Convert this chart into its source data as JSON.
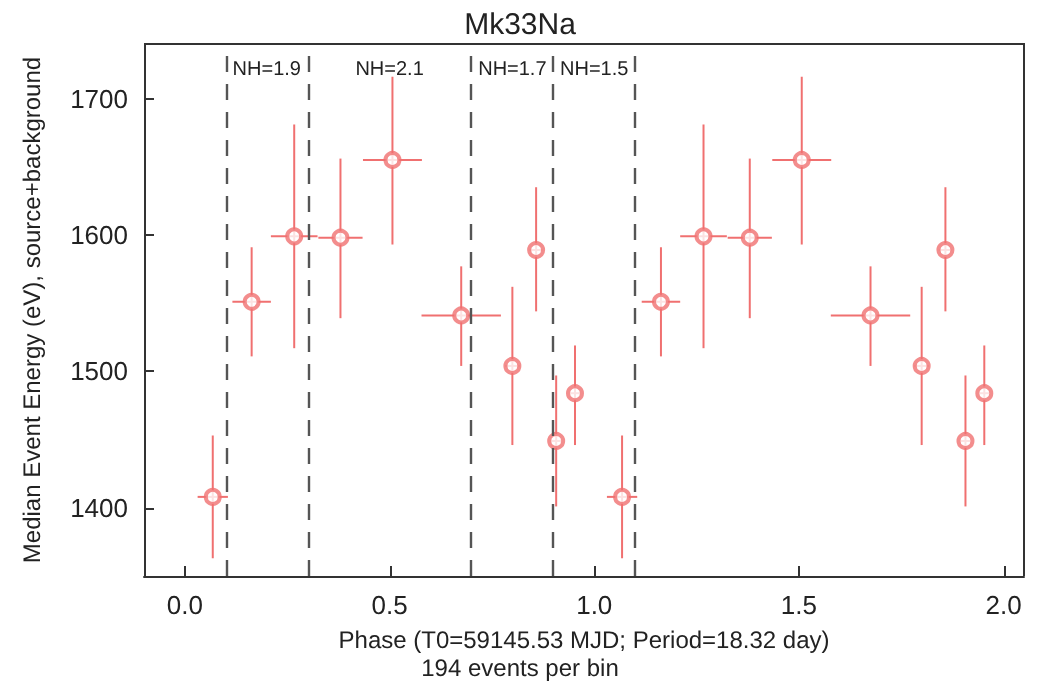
{
  "chart_data": {
    "type": "scatter",
    "title": "Mk33Na",
    "xlabel": "Phase (T0=59145.53 MJD; Period=18.32 day)",
    "ylabel": "Median Event Energy (eV), source+background",
    "annotations": [
      "194 events per bin",
      "NH=1.9",
      "NH=2.1",
      "NH=1.7",
      "NH=1.5"
    ],
    "series": [
      {
        "color": "#f07070",
        "marker": "circle",
        "x": [
          0.068,
          0.163,
          0.267,
          0.38,
          0.507,
          0.675,
          0.8,
          0.858,
          0.907,
          0.953,
          1.068,
          1.163,
          1.267,
          1.38,
          1.507,
          1.675,
          1.8,
          1.858,
          1.907,
          1.953
        ],
        "values": [
          1408,
          1551,
          1599,
          1598,
          1655,
          1541,
          1504,
          1589,
          1449,
          1484,
          1408,
          1551,
          1599,
          1598,
          1655,
          1541,
          1504,
          1589,
          1449,
          1484
        ],
        "errors": [
          [
            1363,
            1453
          ],
          [
            1511,
            1591
          ],
          [
            1517,
            1681
          ],
          [
            1539,
            1656
          ],
          [
            1593,
            1716
          ],
          [
            1504,
            1577
          ],
          [
            1446,
            1562
          ],
          [
            1544,
            1635
          ],
          [
            1401,
            1497
          ],
          [
            1446,
            1519
          ],
          [
            1363,
            1453
          ],
          [
            1511,
            1591
          ],
          [
            1517,
            1681
          ],
          [
            1539,
            1656
          ],
          [
            1593,
            1716
          ],
          [
            1504,
            1577
          ],
          [
            1446,
            1562
          ],
          [
            1544,
            1635
          ],
          [
            1401,
            1497
          ],
          [
            1446,
            1519
          ]
        ],
        "xerrors": [
          0.037,
          0.047,
          0.057,
          0.054,
          0.072,
          0.097,
          0.017,
          0.016,
          0.012,
          0.012,
          0.037,
          0.047,
          0.057,
          0.054,
          0.072,
          0.097,
          0.017,
          0.016,
          0.012,
          0.012
        ]
      }
    ],
    "xlim": [
      -0.1,
      2.05
    ],
    "ylim": [
      1350,
      1740
    ],
    "xticks": [
      {
        "value": 0,
        "label": "0.0"
      },
      {
        "value": 0.5,
        "label": "0.5"
      },
      {
        "value": 1,
        "label": "1.0"
      },
      {
        "value": 1.5,
        "label": "1.5"
      },
      {
        "value": 2,
        "label": "2.0"
      }
    ],
    "yticks": [
      1400,
      1500,
      1600,
      1700
    ],
    "ref_lines": [
      {
        "axis": "x",
        "value": 0.1,
        "color": "#555555",
        "line_style": "dashed"
      },
      {
        "axis": "x",
        "value": 0.3,
        "color": "#555555",
        "line_style": "dashed"
      },
      {
        "axis": "x",
        "value": 0.7,
        "color": "#555555",
        "line_style": "dashed"
      },
      {
        "axis": "x",
        "value": 0.9,
        "color": "#555555",
        "line_style": "dashed"
      },
      {
        "axis": "x",
        "value": 1.1,
        "color": "#555555",
        "line_style": "dashed"
      }
    ],
    "grid": false
  }
}
